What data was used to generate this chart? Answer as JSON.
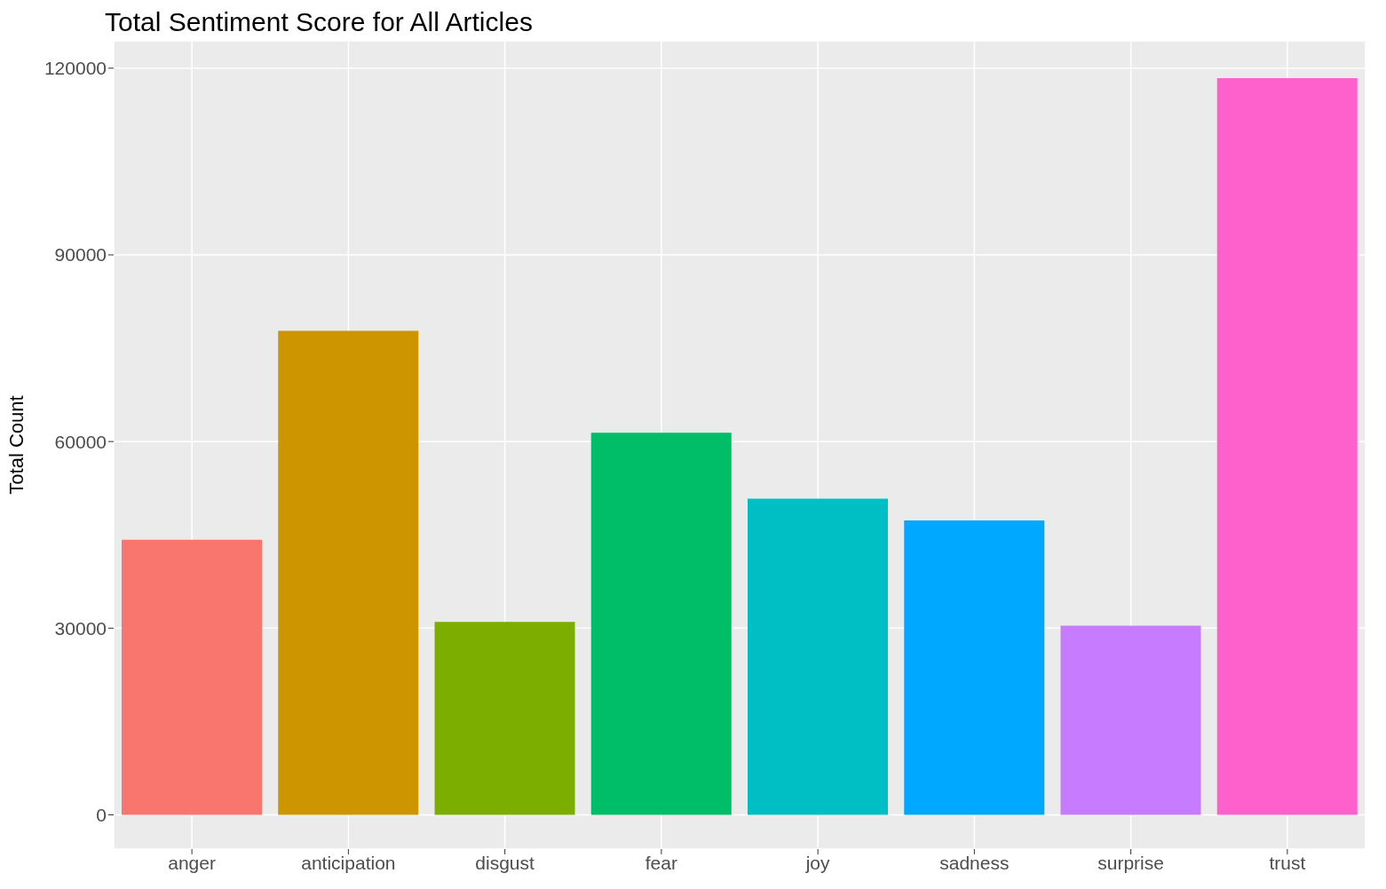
{
  "chart_data": {
    "type": "bar",
    "title": "Total Sentiment Score for All Articles",
    "ylabel": "Total Count",
    "categories": [
      "anger",
      "anticipation",
      "disgust",
      "fear",
      "joy",
      "sadness",
      "surprise",
      "trust"
    ],
    "values": [
      44200,
      77800,
      31000,
      61400,
      50800,
      47300,
      30400,
      118400
    ],
    "colors": [
      "#f8766d",
      "#cd9600",
      "#7cae00",
      "#00be67",
      "#00bfc4",
      "#00a9ff",
      "#c77cff",
      "#ff61cc"
    ],
    "ylim": [
      -5500,
      124400
    ],
    "yticks": [
      0,
      30000,
      60000,
      90000,
      120000
    ],
    "grid": true
  }
}
